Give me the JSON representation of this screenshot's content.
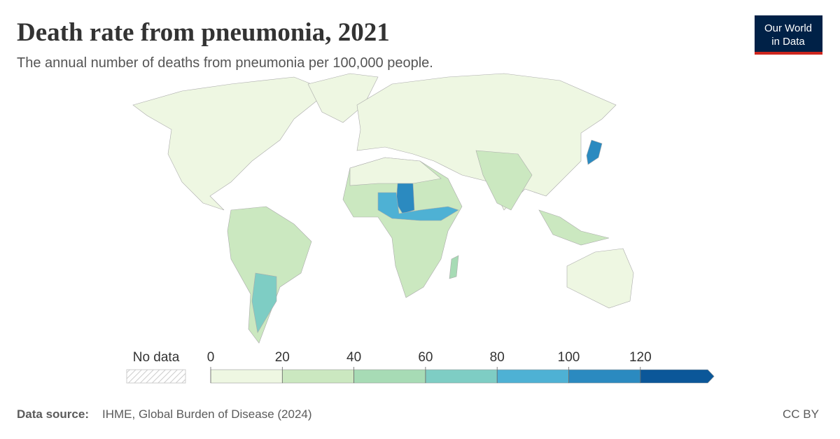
{
  "header": {
    "title": "Death rate from pneumonia, 2021",
    "subtitle": "The annual number of deaths from pneumonia per 100,000 people.",
    "logo": [
      "Our World",
      "in Data"
    ]
  },
  "legend": {
    "no_data": "No data",
    "ticks": [
      0,
      20,
      40,
      60,
      80,
      100,
      120
    ],
    "colors": [
      "#eef7e2",
      "#cbe8c0",
      "#a7dbb5",
      "#7ecdc4",
      "#4eb1d4",
      "#2b8ac0",
      "#0b5799"
    ]
  },
  "footer": {
    "source_label": "Data source:",
    "source": "IHME, Global Burden of Disease (2024)",
    "license": "CC BY"
  }
}
